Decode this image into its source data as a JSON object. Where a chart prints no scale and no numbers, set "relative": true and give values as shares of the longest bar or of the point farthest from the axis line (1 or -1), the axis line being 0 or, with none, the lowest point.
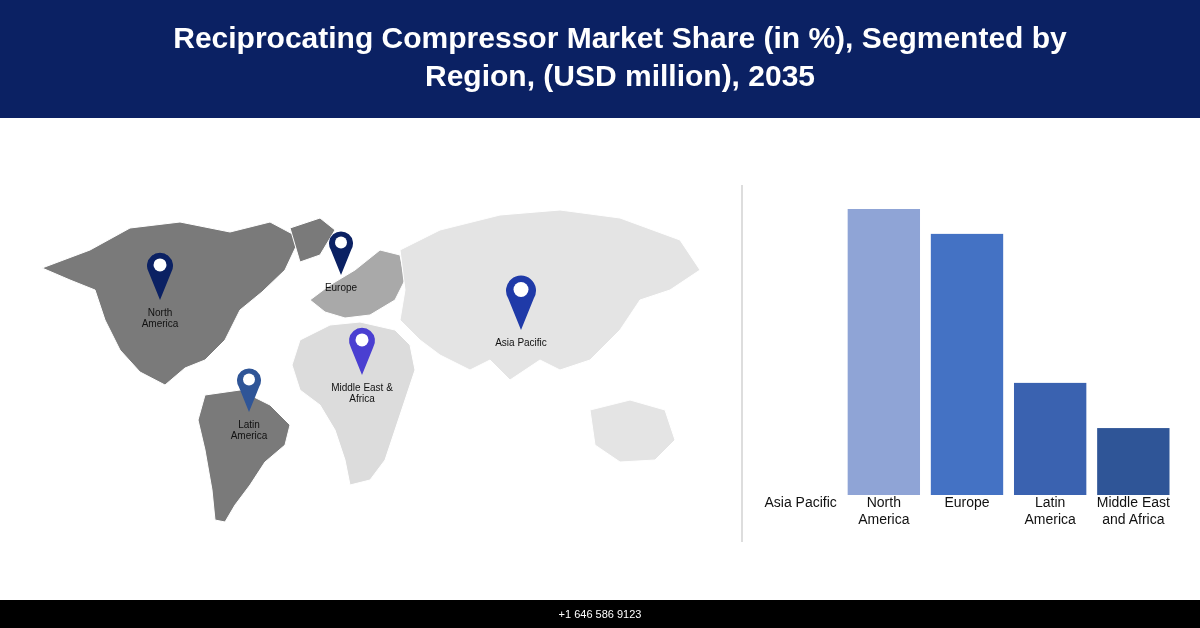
{
  "chart_data": {
    "type": "bar",
    "title": "Reciprocating Compressor Market Share (in %), Segmented by Region, (USD million), 2035",
    "categories": [
      "Asia Pacific",
      "North America",
      "Europe",
      "Latin America",
      "Middle East and Africa"
    ],
    "values": [
      null,
      1,
      0.913,
      0.392,
      0.234
    ],
    "colors": [
      null,
      "#8fa4d6",
      "#4472c4",
      "#3a62b0",
      "#2f5597"
    ],
    "relative": true,
    "annotations": [
      "North America",
      "Europe",
      "Asia Pacific",
      "Middle East & Africa",
      "Latin America",
      "+1 646 586 9123"
    ]
  }
}
